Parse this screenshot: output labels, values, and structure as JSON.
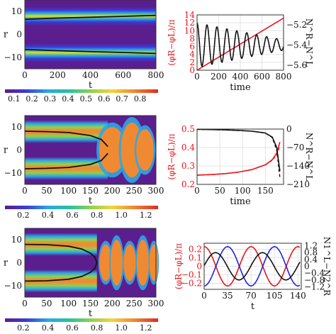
{
  "colors": {
    "red": "#e8141b",
    "black": "#111111",
    "blue": "#2222dd",
    "grid": "#dcdcdc",
    "background_purple": "#5a1e8f"
  },
  "colorbars": [
    {
      "ticks": [
        "0.1",
        "0.2",
        "0.3",
        "0.4",
        "0.5",
        "0.6",
        "0.7",
        "0.8"
      ]
    },
    {
      "ticks": [
        "0.2",
        "0.4",
        "0.6",
        "0.8",
        "1.0",
        "1.2"
      ]
    },
    {
      "ticks": [
        "0.2",
        "0.4",
        "0.6",
        "0.8",
        "1.0",
        "1.2"
      ]
    }
  ],
  "chart_data": [
    {
      "id": "heatmap_top",
      "type": "heatmap",
      "xlabel": "t",
      "ylabel": "r",
      "xlim": [
        0,
        800
      ],
      "ylim": [
        -15,
        15
      ],
      "xticks": [
        "0",
        "200",
        "400",
        "600",
        "800"
      ],
      "yticks": [
        "10",
        "0",
        "−10"
      ],
      "colorscale": "rainbow",
      "vrange": [
        0.05,
        0.9
      ],
      "curves": [
        {
          "t": [
            0,
            200,
            400,
            600,
            800
          ],
          "r": [
            6.6,
            7.1,
            7.5,
            7.9,
            8.3
          ]
        },
        {
          "t": [
            0,
            200,
            400,
            600,
            800
          ],
          "r": [
            -6.6,
            -7.1,
            -7.5,
            -7.9,
            -8.3
          ]
        }
      ]
    },
    {
      "id": "line_top",
      "type": "line",
      "xlabel": "time",
      "ylabel": "(φR−φL)/π",
      "y2label": "N^R−N^L",
      "xlim": [
        0,
        800
      ],
      "ylim": [
        0,
        14
      ],
      "y2lim": [
        -5.65,
        -5.1
      ],
      "xticks": [
        "0",
        "200",
        "400",
        "600",
        "800"
      ],
      "yticks": [
        "0",
        "2",
        "4",
        "6",
        "8",
        "10",
        "12",
        "14"
      ],
      "y2ticks": [
        "−5.6",
        "−5.4",
        "−5.2"
      ],
      "series": [
        {
          "axis": "left",
          "color": "#e8141b",
          "x": [
            0,
            800
          ],
          "y": [
            0,
            13.2
          ]
        },
        {
          "axis": "right",
          "color": "#111111",
          "generator": "damped_oscillation",
          "center": -5.4,
          "amplitude_start": 0.22,
          "amplitude_end": 0.05,
          "period": 92,
          "x_range": [
            0,
            800
          ]
        }
      ]
    },
    {
      "id": "heatmap_middle",
      "type": "heatmap",
      "xlabel": "t",
      "ylabel": "r",
      "xlim": [
        0,
        300
      ],
      "ylim": [
        -15,
        15
      ],
      "xticks": [
        "0",
        "50",
        "100",
        "150",
        "200",
        "250",
        "300"
      ],
      "yticks": [
        "10",
        "0",
        "−10"
      ],
      "colorscale": "rainbow",
      "vrange": [
        0.05,
        1.3
      ],
      "curves": [
        {
          "t": [
            0,
            50,
            100,
            150,
            175,
            190
          ],
          "r": [
            8.2,
            8.0,
            7.6,
            6.3,
            4.6,
            1.5
          ]
        },
        {
          "t": [
            0,
            50,
            100,
            150,
            175,
            190
          ],
          "r": [
            -8.2,
            -8.0,
            -7.6,
            -6.3,
            -4.6,
            -1.5
          ]
        }
      ]
    },
    {
      "id": "line_middle",
      "type": "line",
      "xlabel": "time",
      "ylabel": "(φR−φL)/π",
      "y2label": "N^R−N^L",
      "xlim": [
        0,
        190
      ],
      "ylim": [
        0.2,
        0.5
      ],
      "y2lim": [
        -210,
        0
      ],
      "xticks": [
        "0",
        "50",
        "100",
        "150"
      ],
      "yticks": [
        "0.2",
        "0.3",
        "0.4",
        "0.5"
      ],
      "y2ticks": [
        "−210",
        "−140",
        "−70",
        "0"
      ],
      "series": [
        {
          "axis": "left",
          "color": "#e8141b",
          "style": "solid",
          "x": [
            0,
            30,
            60,
            90,
            120,
            150,
            165,
            175,
            182
          ],
          "y": [
            0.25,
            0.253,
            0.258,
            0.266,
            0.28,
            0.306,
            0.333,
            0.37,
            0.43
          ]
        },
        {
          "axis": "left",
          "color": "#e8141b",
          "style": "dashed",
          "x": [
            0,
            30,
            60,
            90,
            120,
            150,
            165,
            175,
            182
          ],
          "y": [
            0.25,
            0.253,
            0.258,
            0.266,
            0.28,
            0.306,
            0.33,
            0.362,
            0.41
          ]
        },
        {
          "axis": "right",
          "color": "#111111",
          "style": "solid",
          "x": [
            0,
            30,
            60,
            90,
            120,
            150,
            165,
            175,
            182
          ],
          "y": [
            -1,
            -2,
            -3,
            -5,
            -8,
            -15,
            -30,
            -70,
            -160
          ]
        },
        {
          "axis": "right",
          "color": "#111111",
          "style": "dashed",
          "x": [
            0,
            30,
            60,
            90,
            120,
            150,
            165,
            175,
            182
          ],
          "y": [
            -1,
            -2,
            -3,
            -5,
            -8,
            -15,
            -32,
            -80,
            -185
          ]
        }
      ]
    },
    {
      "id": "heatmap_bottom",
      "type": "heatmap",
      "xlabel": "t",
      "ylabel": "r",
      "xlim": [
        0,
        300
      ],
      "ylim": [
        -15,
        15
      ],
      "xticks": [
        "0",
        "50",
        "100",
        "150",
        "200",
        "250",
        "300"
      ],
      "yticks": [
        "10",
        "0",
        "−10"
      ],
      "colorscale": "rainbow",
      "vrange": [
        0.05,
        1.3
      ],
      "curves": [
        {
          "t": [
            0,
            50,
            100,
            130,
            150,
            160,
            165
          ],
          "r": [
            8.0,
            7.9,
            7.2,
            6.0,
            4.2,
            2.5,
            0
          ]
        },
        {
          "t": [
            0,
            50,
            100,
            130,
            150,
            160,
            165
          ],
          "r": [
            -8.0,
            -7.9,
            -7.2,
            -6.0,
            -4.2,
            -2.5,
            0
          ]
        }
      ]
    },
    {
      "id": "line_bottom",
      "type": "line",
      "xlabel": "t",
      "ylabel": "(φR−φL)/π",
      "y2label": "N1^L−N2^R",
      "xlim": [
        0,
        145
      ],
      "ylim": [
        -0.27,
        0.27
      ],
      "y2lim": [
        -1.35,
        1.35
      ],
      "xticks": [
        "0",
        "35",
        "70",
        "105",
        "140"
      ],
      "yticks": [
        "−0.2",
        "−0.1",
        "0",
        "0.1",
        "0.2"
      ],
      "y2ticks": [
        "−1.2",
        "−0.8",
        "−0.4",
        "0",
        "0.4",
        "0.8",
        "1.2"
      ],
      "series": [
        {
          "axis": "left",
          "color": "#e8141b",
          "generator": "cosine",
          "amp": 0.23,
          "period": 70,
          "phase": 0
        },
        {
          "axis": "left",
          "color": "#2222dd",
          "generator": "cosine",
          "amp": 0.23,
          "period": 70,
          "phase": 35
        },
        {
          "axis": "right",
          "color": "#111111",
          "generator": "cosine",
          "amp": 0.8,
          "period": 70,
          "phase": 17
        }
      ]
    }
  ]
}
